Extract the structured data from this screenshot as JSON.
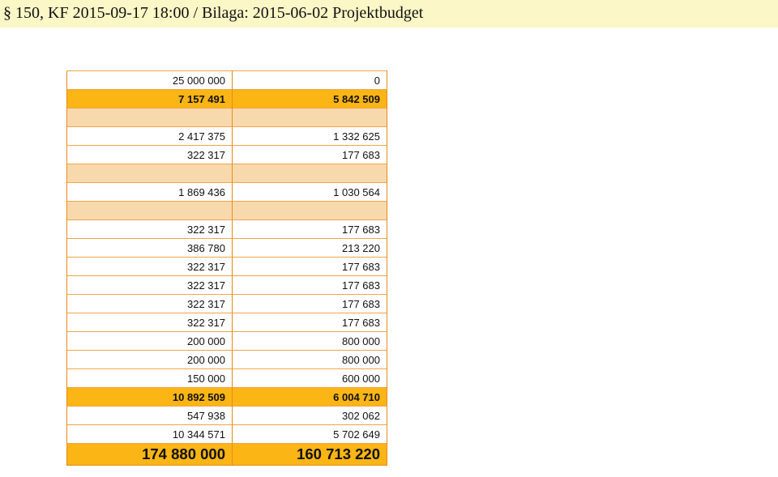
{
  "header": {
    "title": "§ 150, KF 2015-09-17 18:00 / Bilaga: 2015-06-02 Projektbudget"
  },
  "table": {
    "rows": [
      {
        "type": "normal",
        "c1": "25 000 000",
        "c2": "0"
      },
      {
        "type": "total",
        "c1": "7 157 491",
        "c2": "5 842 509"
      },
      {
        "type": "section",
        "c1": "",
        "c2": ""
      },
      {
        "type": "normal",
        "c1": "2 417 375",
        "c2": "1 332 625"
      },
      {
        "type": "normal",
        "c1": "322 317",
        "c2": "177 683"
      },
      {
        "type": "section",
        "c1": "",
        "c2": ""
      },
      {
        "type": "normal",
        "c1": "1 869 436",
        "c2": "1 030 564"
      },
      {
        "type": "section",
        "c1": "",
        "c2": ""
      },
      {
        "type": "normal",
        "c1": "322 317",
        "c2": "177 683"
      },
      {
        "type": "normal",
        "c1": "386 780",
        "c2": "213 220"
      },
      {
        "type": "normal",
        "c1": "322 317",
        "c2": "177 683"
      },
      {
        "type": "normal",
        "c1": "322 317",
        "c2": "177 683"
      },
      {
        "type": "normal",
        "c1": "322 317",
        "c2": "177 683"
      },
      {
        "type": "normal",
        "c1": "322 317",
        "c2": "177 683"
      },
      {
        "type": "normal",
        "c1": "200 000",
        "c2": "800 000"
      },
      {
        "type": "normal",
        "c1": "200 000",
        "c2": "800 000"
      },
      {
        "type": "normal",
        "c1": "150 000",
        "c2": "600 000"
      },
      {
        "type": "total",
        "c1": "10 892 509",
        "c2": "6 004 710"
      },
      {
        "type": "normal",
        "c1": "547 938",
        "c2": "302 062"
      },
      {
        "type": "normal",
        "c1": "10 344 571",
        "c2": "5 702 649"
      },
      {
        "type": "grand",
        "c1": "174 880 000",
        "c2": "160 713 220"
      }
    ]
  }
}
